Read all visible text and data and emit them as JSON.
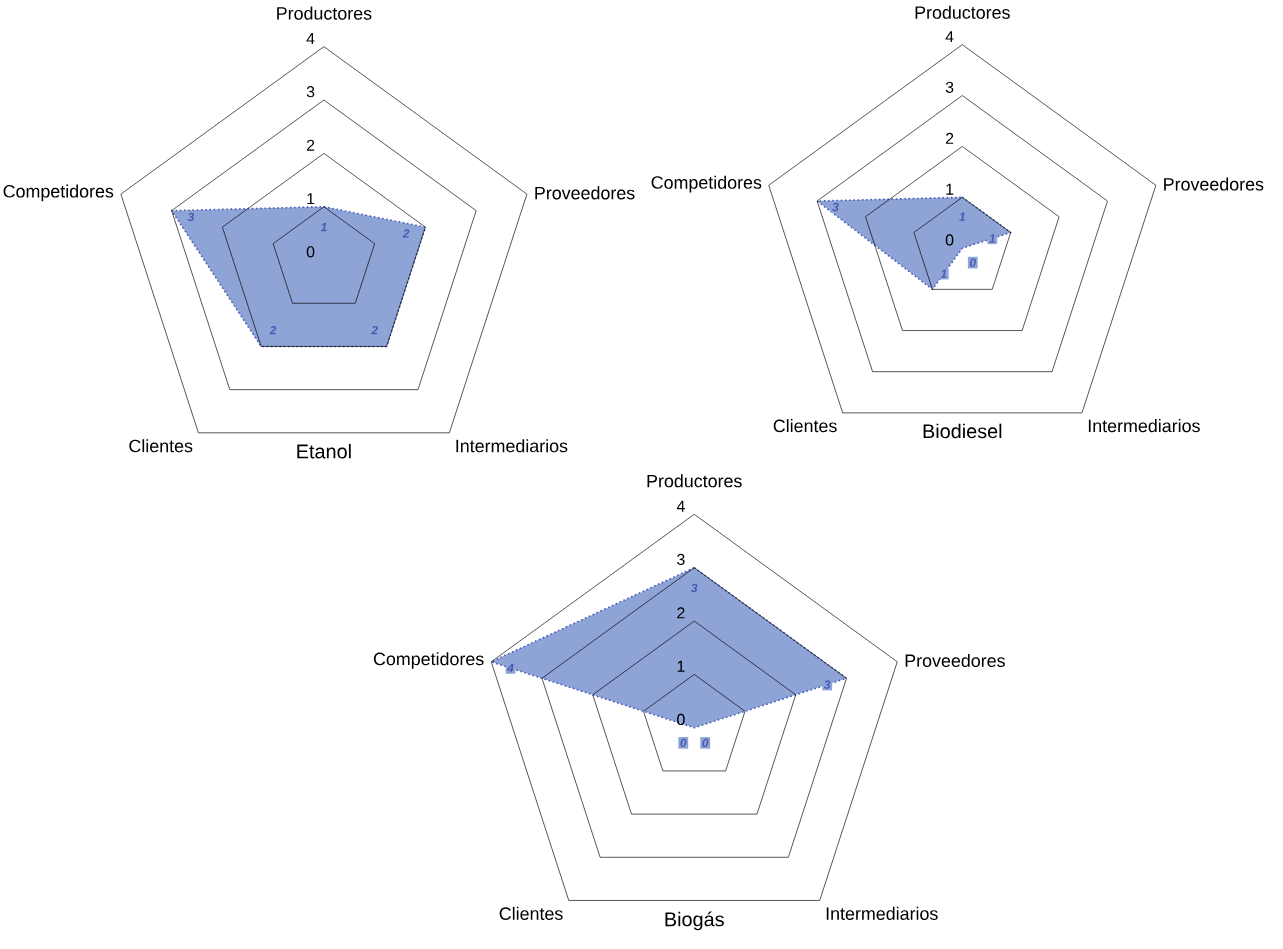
{
  "chart_data": [
    {
      "type": "radar",
      "title": "Etanol",
      "categories": [
        "Productores",
        "Proveedores",
        "Intermediarios",
        "Clientes",
        "Competidores"
      ],
      "series": [
        {
          "color": "#8ea3d6",
          "values": [
            1,
            2,
            2,
            2,
            3
          ]
        }
      ],
      "ylim": [
        0,
        4
      ],
      "yticks": [
        0,
        1,
        2,
        3,
        4
      ],
      "grid": true,
      "data_labels": true,
      "line_style": "dotted"
    },
    {
      "type": "radar",
      "title": "Biodiesel",
      "categories": [
        "Productores",
        "Proveedores",
        "Intermediarios",
        "Clientes",
        "Competidores"
      ],
      "series": [
        {
          "color": "#8ea3d6",
          "values": [
            1,
            1,
            0,
            1,
            3
          ]
        }
      ],
      "ylim": [
        0,
        4
      ],
      "yticks": [
        0,
        1,
        2,
        3,
        4
      ],
      "grid": true,
      "data_labels": true,
      "line_style": "dotted"
    },
    {
      "type": "radar",
      "title": "Biogás",
      "categories": [
        "Productores",
        "Proveedores",
        "Intermediarios",
        "Clientes",
        "Competidores"
      ],
      "series": [
        {
          "color": "#8ea3d6",
          "values": [
            3,
            3,
            0,
            0,
            4
          ]
        }
      ],
      "ylim": [
        0,
        4
      ],
      "yticks": [
        0,
        1,
        2,
        3,
        4
      ],
      "grid": true,
      "data_labels": true,
      "line_style": "dotted"
    }
  ]
}
